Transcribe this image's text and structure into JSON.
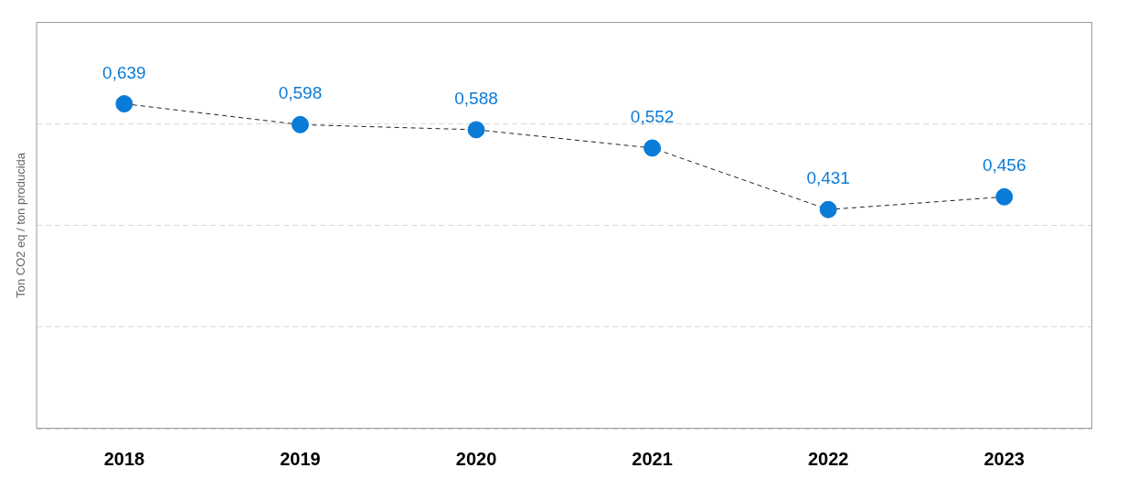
{
  "chart_data": {
    "type": "line",
    "y_label": "Ton CO2 eq / ton producida",
    "categories": [
      "2018",
      "2019",
      "2020",
      "2021",
      "2022",
      "2023"
    ],
    "values": [
      0.639,
      0.598,
      0.588,
      0.552,
      0.431,
      0.456
    ],
    "value_labels": [
      "0,639",
      "0,598",
      "0,588",
      "0,552",
      "0,431",
      "0,456"
    ],
    "color": "#0a7bd7",
    "marker": "circle",
    "line_style": "dashed",
    "data_labels": true,
    "ylim": [
      0,
      0.8
    ],
    "yticks": [
      0,
      0.2,
      0.4,
      0.6,
      0.8
    ],
    "grid": true,
    "tick_labels": "x"
  }
}
